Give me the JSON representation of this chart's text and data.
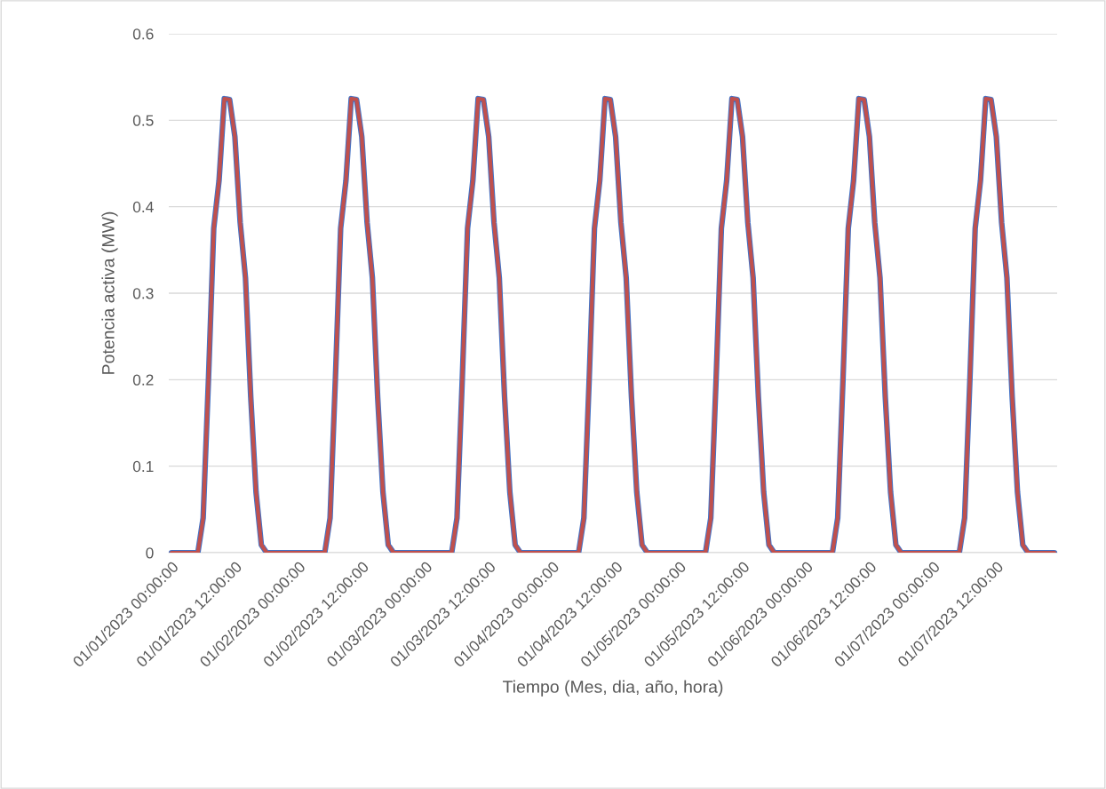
{
  "chart_data": {
    "type": "line",
    "xlabel": "Tiempo (Mes, dia, año, hora)",
    "ylabel": "Potencia activa (MW)",
    "categories": [
      "01/01/2023 00:00:00",
      null,
      null,
      null,
      null,
      null,
      null,
      null,
      null,
      null,
      null,
      null,
      "01/01/2023 12:00:00",
      null,
      null,
      null,
      null,
      null,
      null,
      null,
      null,
      null,
      null,
      null,
      "01/02/2023 00:00:00",
      null,
      null,
      null,
      null,
      null,
      null,
      null,
      null,
      null,
      null,
      null,
      "01/02/2023 12:00:00",
      null,
      null,
      null,
      null,
      null,
      null,
      null,
      null,
      null,
      null,
      null,
      "01/03/2023 00:00:00",
      null,
      null,
      null,
      null,
      null,
      null,
      null,
      null,
      null,
      null,
      null,
      "01/03/2023 12:00:00",
      null,
      null,
      null,
      null,
      null,
      null,
      null,
      null,
      null,
      null,
      null,
      "01/04/2023 00:00:00",
      null,
      null,
      null,
      null,
      null,
      null,
      null,
      null,
      null,
      null,
      null,
      "01/04/2023 12:00:00",
      null,
      null,
      null,
      null,
      null,
      null,
      null,
      null,
      null,
      null,
      null,
      "01/05/2023 00:00:00",
      null,
      null,
      null,
      null,
      null,
      null,
      null,
      null,
      null,
      null,
      null,
      "01/05/2023 12:00:00",
      null,
      null,
      null,
      null,
      null,
      null,
      null,
      null,
      null,
      null,
      null,
      "01/06/2023 00:00:00",
      null,
      null,
      null,
      null,
      null,
      null,
      null,
      null,
      null,
      null,
      null,
      "01/06/2023 12:00:00",
      null,
      null,
      null,
      null,
      null,
      null,
      null,
      null,
      null,
      null,
      null,
      "01/07/2023 00:00:00",
      null,
      null,
      null,
      null,
      null,
      null,
      null,
      null,
      null,
      null,
      null,
      "01/07/2023 12:00:00",
      null,
      null,
      null,
      null,
      null,
      null,
      null,
      null,
      null,
      null,
      null
    ],
    "series": [
      {
        "color": "#4472c4",
        "values": [
          0,
          0,
          0,
          0,
          0,
          0,
          0.04,
          0.2,
          0.375,
          0.43,
          0.525,
          0.524,
          0.481,
          0.382,
          0.318,
          0.18,
          0.07,
          0.009,
          0,
          0,
          0,
          0,
          0,
          0,
          0,
          0,
          0,
          0,
          0,
          0,
          0.04,
          0.2,
          0.375,
          0.43,
          0.525,
          0.524,
          0.481,
          0.382,
          0.318,
          0.18,
          0.07,
          0.009,
          0,
          0,
          0,
          0,
          0,
          0,
          0,
          0,
          0,
          0,
          0,
          0,
          0.04,
          0.2,
          0.375,
          0.43,
          0.525,
          0.524,
          0.481,
          0.382,
          0.318,
          0.18,
          0.07,
          0.009,
          0,
          0,
          0,
          0,
          0,
          0,
          0,
          0,
          0,
          0,
          0,
          0,
          0.04,
          0.2,
          0.375,
          0.43,
          0.525,
          0.524,
          0.481,
          0.382,
          0.318,
          0.18,
          0.07,
          0.009,
          0,
          0,
          0,
          0,
          0,
          0,
          0,
          0,
          0,
          0,
          0,
          0,
          0.04,
          0.2,
          0.375,
          0.43,
          0.525,
          0.524,
          0.481,
          0.382,
          0.318,
          0.18,
          0.07,
          0.009,
          0,
          0,
          0,
          0,
          0,
          0,
          0,
          0,
          0,
          0,
          0,
          0,
          0.04,
          0.2,
          0.375,
          0.43,
          0.525,
          0.524,
          0.481,
          0.382,
          0.318,
          0.18,
          0.07,
          0.009,
          0,
          0,
          0,
          0,
          0,
          0,
          0,
          0,
          0,
          0,
          0,
          0,
          0.04,
          0.2,
          0.375,
          0.43,
          0.525,
          0.524,
          0.481,
          0.382,
          0.318,
          0.18,
          0.07,
          0.009,
          0,
          0,
          0,
          0,
          0,
          0
        ]
      },
      {
        "color": "#c0504d",
        "values": [
          0,
          0,
          0,
          0,
          0,
          0,
          0.04,
          0.2,
          0.375,
          0.43,
          0.525,
          0.524,
          0.481,
          0.382,
          0.318,
          0.18,
          0.07,
          0.009,
          0,
          0,
          0,
          0,
          0,
          0,
          0,
          0,
          0,
          0,
          0,
          0,
          0.04,
          0.2,
          0.375,
          0.43,
          0.525,
          0.524,
          0.481,
          0.382,
          0.318,
          0.18,
          0.07,
          0.009,
          0,
          0,
          0,
          0,
          0,
          0,
          0,
          0,
          0,
          0,
          0,
          0,
          0.04,
          0.2,
          0.375,
          0.43,
          0.525,
          0.524,
          0.481,
          0.382,
          0.318,
          0.18,
          0.07,
          0.009,
          0,
          0,
          0,
          0,
          0,
          0,
          0,
          0,
          0,
          0,
          0,
          0,
          0.04,
          0.2,
          0.375,
          0.43,
          0.525,
          0.524,
          0.481,
          0.382,
          0.318,
          0.18,
          0.07,
          0.009,
          0,
          0,
          0,
          0,
          0,
          0,
          0,
          0,
          0,
          0,
          0,
          0,
          0.04,
          0.2,
          0.375,
          0.43,
          0.525,
          0.524,
          0.481,
          0.382,
          0.318,
          0.18,
          0.07,
          0.009,
          0,
          0,
          0,
          0,
          0,
          0,
          0,
          0,
          0,
          0,
          0,
          0,
          0.04,
          0.2,
          0.375,
          0.43,
          0.525,
          0.524,
          0.481,
          0.382,
          0.318,
          0.18,
          0.07,
          0.009,
          0,
          0,
          0,
          0,
          0,
          0,
          0,
          0,
          0,
          0,
          0,
          0,
          0.04,
          0.2,
          0.375,
          0.43,
          0.525,
          0.524,
          0.481,
          0.382,
          0.318,
          0.18,
          0.07,
          0.009,
          0,
          0,
          0,
          0,
          0,
          0
        ]
      }
    ],
    "ylim": [
      0,
      0.6
    ],
    "yticks": [
      0,
      0.1,
      0.2,
      0.3,
      0.4,
      0.5,
      0.6
    ],
    "grid": "y",
    "marker": "none",
    "line_style": "solid"
  }
}
